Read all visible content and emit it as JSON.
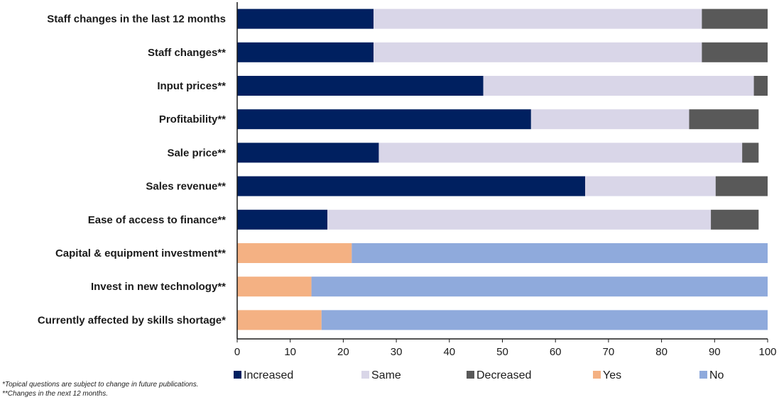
{
  "chart_data": {
    "type": "bar",
    "orientation": "horizontal",
    "stacked": true,
    "categories": [
      "Staff changes in the last 12 months",
      "Staff changes**",
      "Input prices**",
      "Profitability**",
      "Sale price**",
      "Sales revenue**",
      "Ease of access to finance**",
      "Capital & equipment investment**",
      "Invest in new technology**",
      "Currently affected by skills shortage*"
    ],
    "series": [
      {
        "name": "Increased",
        "color": "#002060",
        "values": [
          25.7,
          25.7,
          46.4,
          55.4,
          26.7,
          65.6,
          17.0,
          null,
          null,
          null
        ]
      },
      {
        "name": "Same",
        "color": "#D9D6E8",
        "values": [
          61.9,
          61.9,
          51.0,
          29.8,
          68.5,
          24.6,
          72.3,
          null,
          null,
          null
        ]
      },
      {
        "name": "Decreased",
        "color": "#595959",
        "values": [
          12.4,
          12.4,
          2.6,
          13.1,
          3.1,
          9.8,
          9.0,
          null,
          null,
          null
        ]
      },
      {
        "name": "Yes",
        "color": "#F4B183",
        "values": [
          null,
          null,
          null,
          null,
          null,
          null,
          null,
          21.6,
          14.0,
          15.9
        ]
      },
      {
        "name": "No",
        "color": "#8FAADC",
        "values": [
          null,
          null,
          null,
          null,
          null,
          null,
          null,
          78.4,
          86.0,
          84.1
        ]
      }
    ],
    "xlim": [
      0,
      100
    ],
    "xticks": [
      0,
      10,
      20,
      30,
      40,
      50,
      60,
      70,
      80,
      90,
      100
    ],
    "legend_position": "bottom",
    "grid": false
  },
  "footnotes": [
    "*Topical questions are subject to change in future publications.",
    "**Changes in the next 12 months."
  ]
}
